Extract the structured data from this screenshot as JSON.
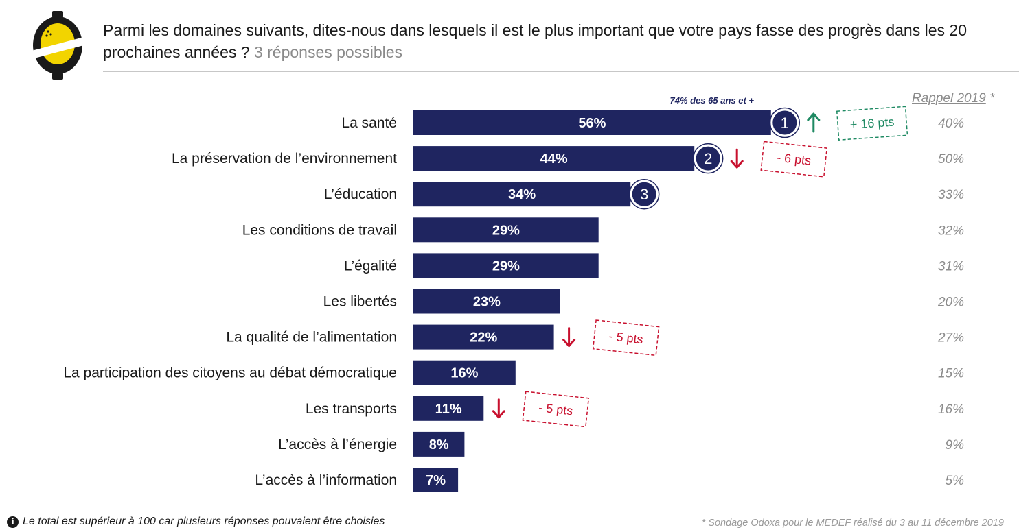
{
  "header": {
    "question": "Parmi les domaines suivants, dites-nous dans lesquels il est le plus important que votre pays fasse des progrès dans les 20 prochaines années ?",
    "subtitle": "3 réponses possibles"
  },
  "recall_header": "Rappel 2019",
  "recall_star": "*",
  "annotation": "74% des 65 ans et +",
  "footnote": "Le total est supérieur à 100 car plusieurs réponses pouvaient être choisies",
  "source": "* Sondage Odoxa pour le MEDEF réalisé du 3 au 11 décembre 2019",
  "colors": {
    "bar": "#1f2560",
    "up": "#1f8a63",
    "down": "#c8102e",
    "recall": "#8c8c8c",
    "logo": "#f2d400"
  },
  "icons": {
    "logo": "odoxa-logo-icon",
    "info": "info-icon",
    "arrow_up": "arrow-up-icon",
    "arrow_down": "arrow-down-icon"
  },
  "chart_data": {
    "type": "bar",
    "orientation": "horizontal",
    "categories": [
      "La santé",
      "La préservation de l’environnement",
      "L’éducation",
      "Les conditions de travail",
      "L’égalité",
      "Les libertés",
      "La qualité de l’alimentation",
      "La participation des citoyens au débat démocratique",
      "Les transports",
      "L’accès à l’énergie",
      "L’accès à l’information"
    ],
    "values": [
      56,
      44,
      34,
      29,
      29,
      23,
      22,
      16,
      11,
      8,
      7
    ],
    "value_labels": [
      "56%",
      "44%",
      "34%",
      "29%",
      "29%",
      "23%",
      "22%",
      "16%",
      "11%",
      "8%",
      "7%"
    ],
    "recall_2019": [
      "40%",
      "50%",
      "33%",
      "32%",
      "31%",
      "20%",
      "27%",
      "15%",
      "16%",
      "9%",
      "5%"
    ],
    "ranks": [
      {
        "index": 0,
        "label": "1"
      },
      {
        "index": 1,
        "label": "2"
      },
      {
        "index": 2,
        "label": "3"
      }
    ],
    "changes": [
      {
        "index": 0,
        "direction": "up",
        "label": "+ 16 pts"
      },
      {
        "index": 1,
        "direction": "down",
        "label": "- 6 pts"
      },
      {
        "index": 6,
        "direction": "down",
        "label": "- 5 pts"
      },
      {
        "index": 8,
        "direction": "down",
        "label": "- 5 pts"
      }
    ]
  }
}
